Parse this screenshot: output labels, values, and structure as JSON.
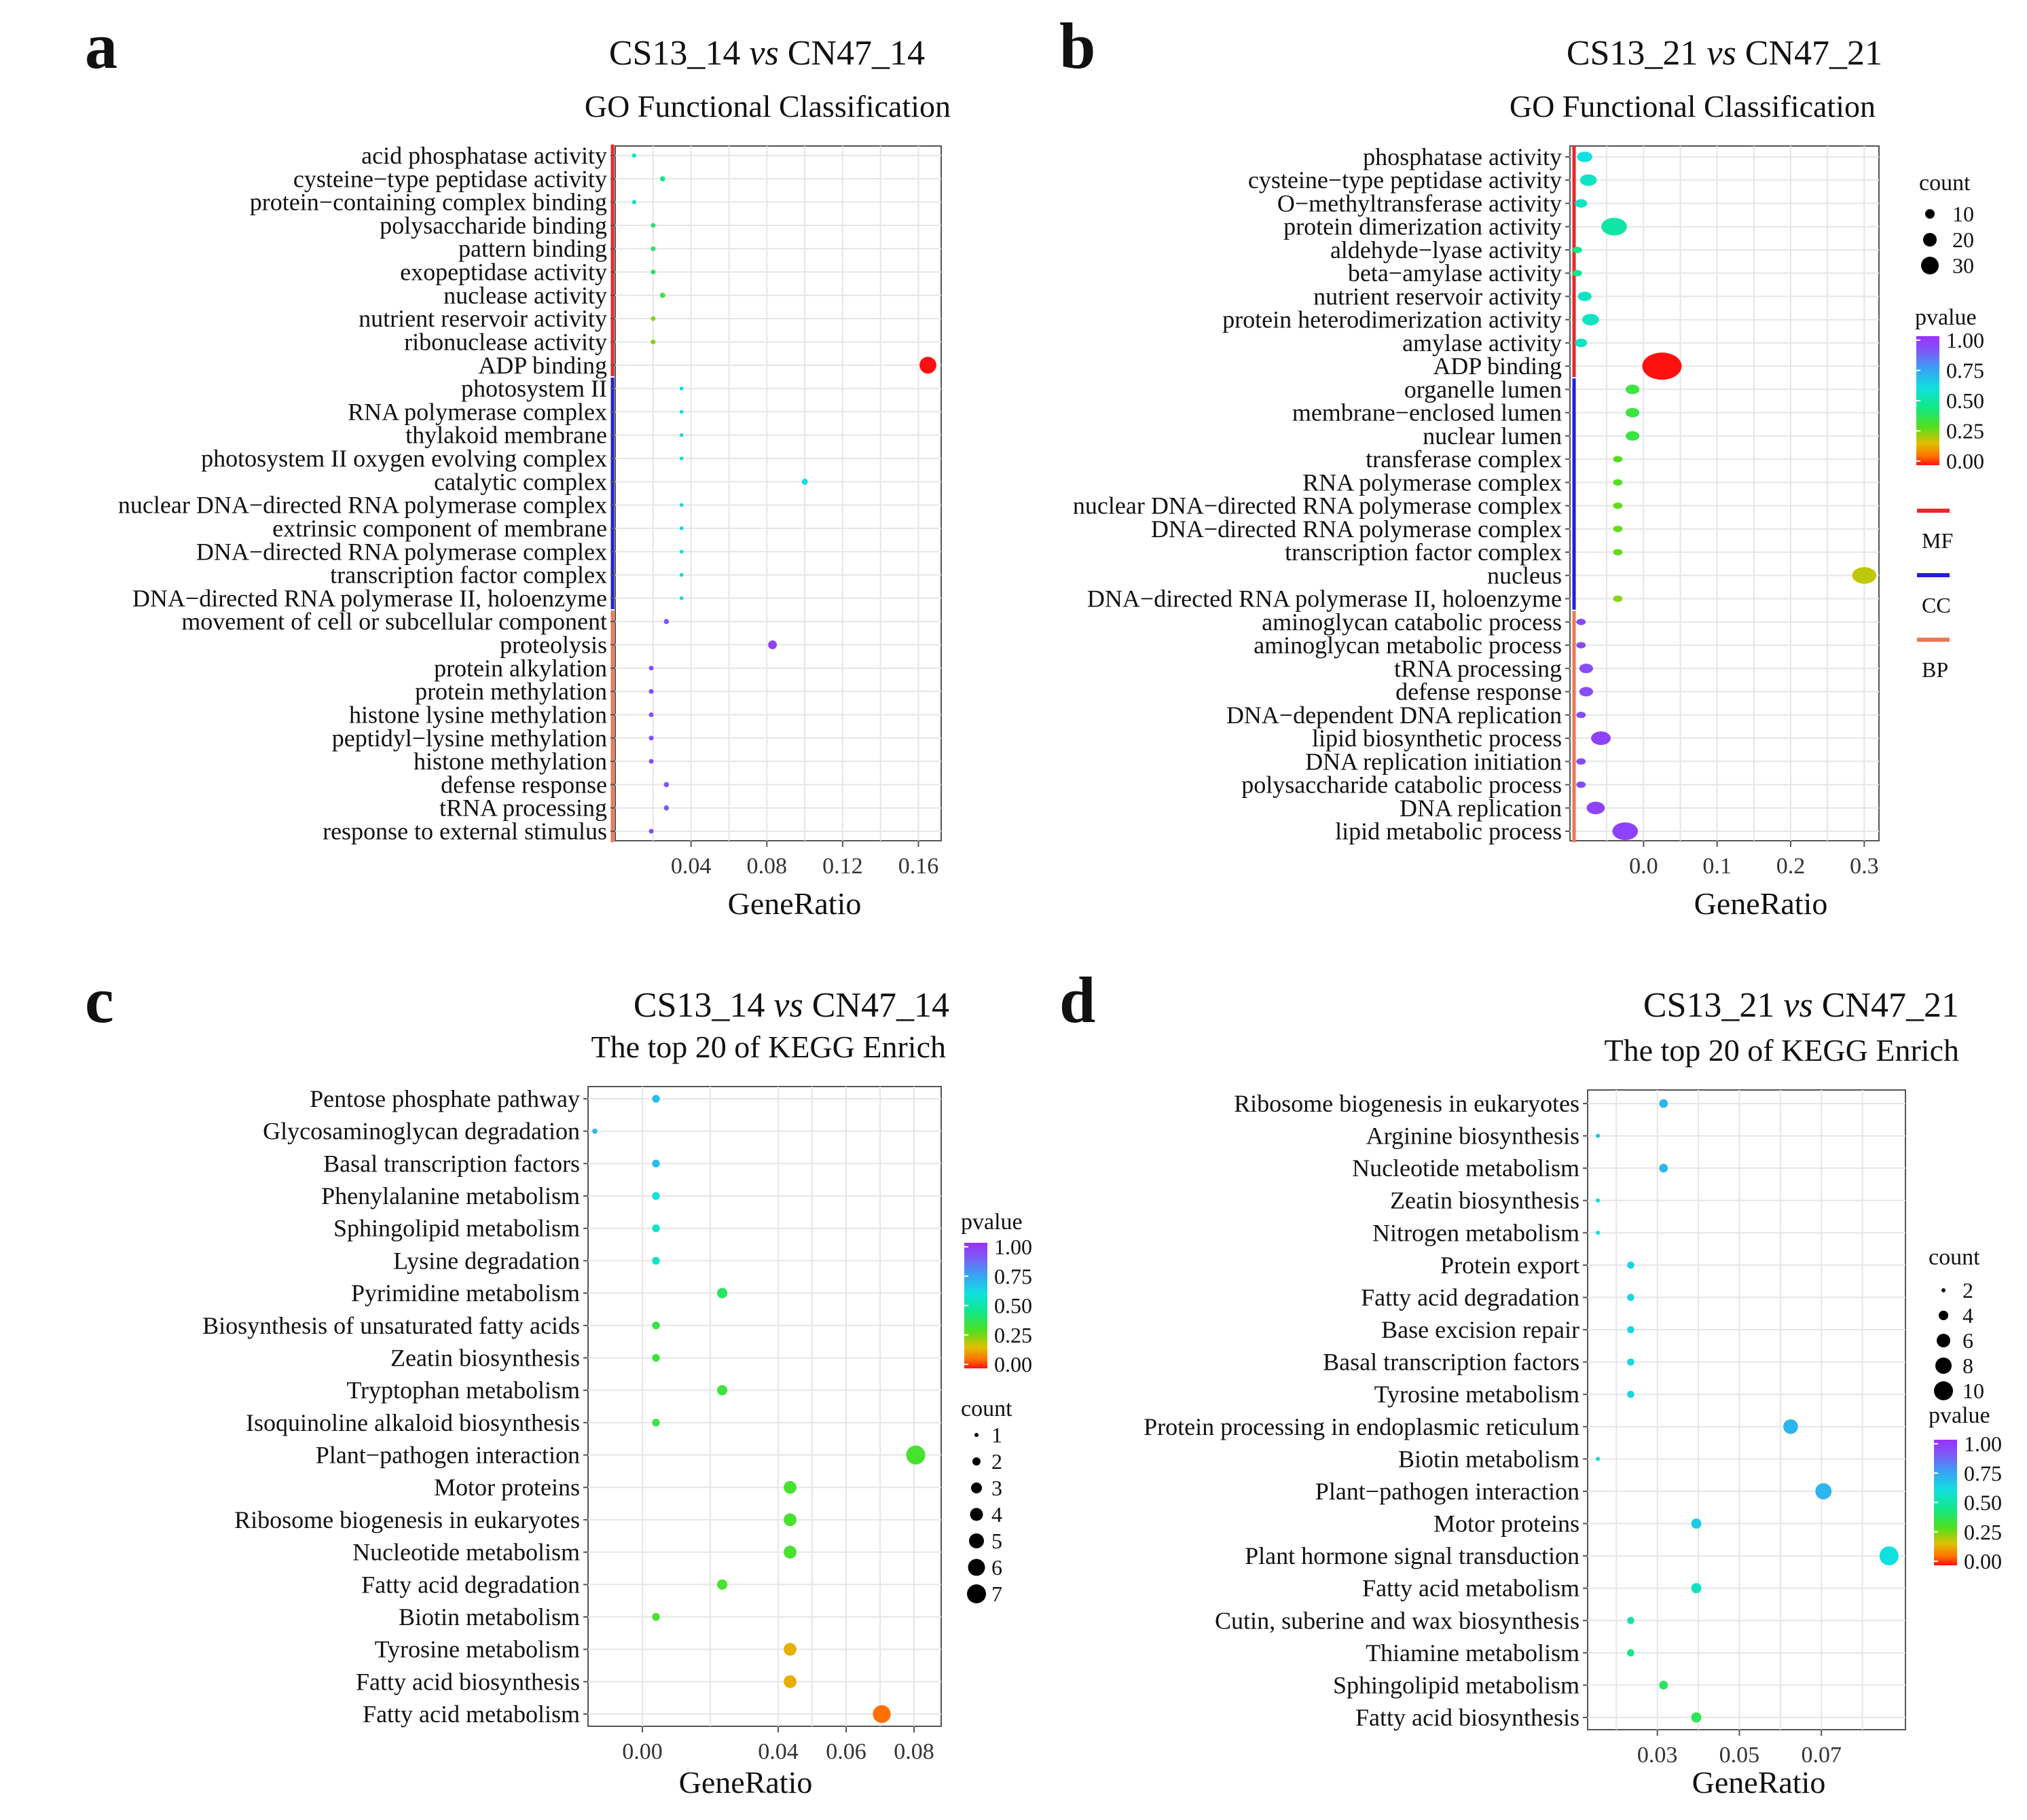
{
  "chart_data": [
    {
      "panel": "a",
      "type": "scatter",
      "title": "CS13_14 vs CN47_14",
      "title_parts": [
        "CS13_14",
        "vs",
        "CN47_14"
      ],
      "subtitle": "GO Functional Classification",
      "xlabel": "GeneRatio",
      "xlim": [
        0.0,
        0.172
      ],
      "xticks": [
        0.04,
        0.08,
        0.12,
        0.16
      ],
      "xtick_labels": [
        "0.04",
        "0.08",
        "0.12",
        "0.16"
      ],
      "categories": [
        "acid phosphatase activity",
        "cysteine−type peptidase activity",
        "protein−containing complex binding",
        "polysaccharide binding",
        "pattern binding",
        "exopeptidase activity",
        "nuclease activity",
        "nutrient reservoir activity",
        "ribonuclease activity",
        "ADP binding",
        "photosystem II",
        "RNA polymerase complex",
        "thylakoid membrane",
        "photosystem II oxygen evolving complex",
        "catalytic complex",
        "nuclear DNA−directed RNA polymerase complex",
        "extrinsic component of membrane",
        "DNA−directed RNA polymerase complex",
        "transcription factor complex",
        "DNA−directed RNA polymerase II, holoenzyme",
        "movement of cell or subcellular component",
        "proteolysis",
        "protein alkylation",
        "protein methylation",
        "histone lysine methylation",
        "peptidyl−lysine methylation",
        "histone methylation",
        "defense response",
        "tRNA processing",
        "response to external stimulus"
      ],
      "gene_ratio": [
        0.01,
        0.025,
        0.01,
        0.02,
        0.02,
        0.02,
        0.025,
        0.02,
        0.02,
        0.165,
        0.035,
        0.035,
        0.035,
        0.035,
        0.1,
        0.035,
        0.035,
        0.035,
        0.035,
        0.035,
        0.027,
        0.083,
        0.019,
        0.019,
        0.019,
        0.019,
        0.019,
        0.027,
        0.027,
        0.019
      ],
      "count": [
        2,
        4,
        2,
        3,
        3,
        3,
        4,
        3,
        3,
        30,
        1,
        1,
        1,
        1,
        6,
        1,
        1,
        1,
        1,
        1,
        4,
        12,
        3,
        3,
        3,
        3,
        3,
        4,
        4,
        3
      ],
      "pvalue": [
        0.55,
        0.45,
        0.55,
        0.4,
        0.4,
        0.4,
        0.35,
        0.25,
        0.25,
        0.0,
        0.62,
        0.62,
        0.62,
        0.62,
        0.6,
        0.62,
        0.62,
        0.62,
        0.62,
        0.62,
        0.9,
        0.95,
        0.93,
        0.93,
        0.93,
        0.93,
        0.93,
        0.9,
        0.9,
        0.93
      ],
      "ontology": [
        "MF",
        "MF",
        "MF",
        "MF",
        "MF",
        "MF",
        "MF",
        "MF",
        "MF",
        "MF",
        "CC",
        "CC",
        "CC",
        "CC",
        "CC",
        "CC",
        "CC",
        "CC",
        "CC",
        "CC",
        "BP",
        "BP",
        "BP",
        "BP",
        "BP",
        "BP",
        "BP",
        "BP",
        "BP",
        "BP"
      ]
    },
    {
      "panel": "b",
      "type": "scatter",
      "title": "CS13_21 vs CN47_21",
      "title_parts": [
        "CS13_21",
        "vs",
        "CN47_21"
      ],
      "subtitle": "GO Functional Classification",
      "xlabel": "GeneRatio",
      "xlim": [
        -0.1,
        0.32
      ],
      "xticks": [
        0.0,
        0.1,
        0.2,
        0.3
      ],
      "xtick_labels": [
        "0.0",
        "0.1",
        "0.2",
        "0.3"
      ],
      "categories": [
        "phosphatase activity",
        "cysteine−type peptidase activity",
        "O−methyltransferase activity",
        "protein dimerization activity",
        "aldehyde−lyase activity",
        "beta−amylase activity",
        "nutrient reservoir activity",
        "protein heterodimerization activity",
        "amylase activity",
        "ADP binding",
        "organelle lumen",
        "membrane−enclosed lumen",
        "nuclear lumen",
        "transferase complex",
        "RNA polymerase complex",
        "nuclear DNA−directed RNA polymerase complex",
        "DNA−directed RNA polymerase complex",
        "transcription factor complex",
        "nucleus",
        "DNA−directed RNA polymerase II, holoenzyme",
        "aminoglycan catabolic process",
        "aminoglycan metabolic process",
        "tRNA processing",
        "defense response",
        "DNA−dependent DNA replication",
        "lipid biosynthetic process",
        "DNA replication initiation",
        "polysaccharide catabolic process",
        "DNA replication",
        "lipid metabolic process"
      ],
      "gene_ratio": [
        -0.08,
        -0.075,
        -0.085,
        -0.04,
        -0.09,
        -0.09,
        -0.08,
        -0.072,
        -0.085,
        0.025,
        -0.015,
        -0.015,
        -0.015,
        -0.035,
        -0.035,
        -0.035,
        -0.035,
        -0.035,
        0.3,
        -0.035,
        -0.085,
        -0.085,
        -0.078,
        -0.078,
        -0.085,
        -0.058,
        -0.085,
        -0.085,
        -0.065,
        -0.025
      ],
      "count": [
        7,
        8,
        5,
        14,
        3,
        3,
        6,
        8,
        5,
        30,
        6,
        6,
        6,
        3,
        3,
        3,
        3,
        3,
        13,
        3,
        3,
        3,
        6,
        6,
        3,
        10,
        3,
        3,
        9,
        14
      ],
      "pvalue": [
        0.6,
        0.55,
        0.55,
        0.5,
        0.45,
        0.45,
        0.55,
        0.55,
        0.55,
        0.0,
        0.35,
        0.35,
        0.35,
        0.3,
        0.3,
        0.28,
        0.28,
        0.28,
        0.2,
        0.25,
        0.93,
        0.93,
        0.92,
        0.92,
        0.93,
        0.95,
        0.93,
        0.93,
        0.95,
        0.95
      ],
      "ontology": [
        "MF",
        "MF",
        "MF",
        "MF",
        "MF",
        "MF",
        "MF",
        "MF",
        "MF",
        "MF",
        "CC",
        "CC",
        "CC",
        "CC",
        "CC",
        "CC",
        "CC",
        "CC",
        "CC",
        "CC",
        "BP",
        "BP",
        "BP",
        "BP",
        "BP",
        "BP",
        "BP",
        "BP",
        "BP",
        "BP"
      ],
      "legend": {
        "count_title": "count",
        "count_values": [
          10,
          20,
          30
        ],
        "count_labels": [
          "10",
          "20",
          "30"
        ],
        "pvalue_title": "pvalue",
        "pvalue_ticks": [
          "1.00",
          "0.75",
          "0.50",
          "0.25",
          "0.00"
        ],
        "ontology_labels": [
          "MF",
          "CC",
          "BP"
        ],
        "ontology_colors": [
          "#e8282b",
          "#1f1fd6",
          "#ee7755"
        ]
      }
    },
    {
      "panel": "c",
      "type": "scatter",
      "title": "CS13_14 vs CN47_14",
      "title_parts": [
        "CS13_14",
        "vs",
        "CN47_14"
      ],
      "subtitle": "The top 20 of KEGG Enrich",
      "xlabel": "GeneRatio",
      "xlim": [
        -0.016,
        0.088
      ],
      "xticks": [
        0.0,
        0.04,
        0.06,
        0.08
      ],
      "xtick_labels": [
        "0.00",
        "0.04",
        "0.06",
        "0.08"
      ],
      "categories": [
        "Pentose phosphate pathway",
        "Glycosaminoglycan degradation",
        "Basal transcription factors",
        "Phenylalanine metabolism",
        "Sphingolipid metabolism",
        "Lysine degradation",
        "Pyrimidine metabolism",
        "Biosynthesis of unsaturated fatty acids",
        "Zeatin biosynthesis",
        "Tryptophan metabolism",
        "Isoquinoline alkaloid biosynthesis",
        "Plant−pathogen interaction",
        "Motor proteins",
        "Ribosome biogenesis in eukaryotes",
        "Nucleotide metabolism",
        "Fatty acid degradation",
        "Biotin metabolism",
        "Tyrosine metabolism",
        "Fatty acid biosynthesis",
        "Fatty acid metabolism"
      ],
      "gene_ratio": [
        0.004,
        -0.014,
        0.004,
        0.004,
        0.004,
        0.004,
        0.0235,
        0.004,
        0.004,
        0.0235,
        0.004,
        0.0805,
        0.0435,
        0.0435,
        0.0435,
        0.0235,
        0.004,
        0.0435,
        0.0435,
        0.0705
      ],
      "count": [
        2,
        1,
        2,
        2,
        2,
        2,
        3,
        2,
        2,
        3,
        2,
        7,
        4,
        4,
        4,
        3,
        2,
        4,
        4,
        6
      ],
      "pvalue": [
        0.68,
        0.7,
        0.68,
        0.6,
        0.55,
        0.55,
        0.4,
        0.35,
        0.35,
        0.35,
        0.35,
        0.32,
        0.32,
        0.32,
        0.32,
        0.32,
        0.32,
        0.15,
        0.15,
        0.07
      ],
      "legend": {
        "pvalue_title": "pvalue",
        "pvalue_ticks": [
          "1.00",
          "0.75",
          "0.50",
          "0.25",
          "0.00"
        ],
        "count_title": "count",
        "count_values": [
          1,
          2,
          3,
          4,
          5,
          6,
          7
        ],
        "count_labels": [
          "1",
          "2",
          "3",
          "4",
          "5",
          "6",
          "7"
        ]
      }
    },
    {
      "panel": "d",
      "type": "scatter",
      "title": "CS13_21 vs CN47_21",
      "title_parts": [
        "CS13_21",
        "vs",
        "CN47_21"
      ],
      "subtitle": "The top 20 of KEGG Enrich",
      "xlabel": "GeneRatio",
      "xlim": [
        0.013,
        0.0905
      ],
      "xticks": [
        0.03,
        0.05,
        0.07
      ],
      "xtick_labels": [
        "0.03",
        "0.05",
        "0.07"
      ],
      "categories": [
        "Ribosome biogenesis in eukaryotes",
        "Arginine biosynthesis",
        "Nucleotide metabolism",
        "Zeatin biosynthesis",
        "Nitrogen metabolism",
        "Protein export",
        "Fatty acid degradation",
        "Base excision repair",
        "Basal transcription factors",
        "Tyrosine metabolism",
        "Protein processing in endoplasmic reticulum",
        "Biotin metabolism",
        "Plant−pathogen interaction",
        "Motor proteins",
        "Plant hormone signal transduction",
        "Fatty acid metabolism",
        "Cutin, suberine and wax biosynthesis",
        "Thiamine metabolism",
        "Sphingolipid metabolism",
        "Fatty acid biosynthesis"
      ],
      "gene_ratio": [
        0.0315,
        0.0155,
        0.0315,
        0.0155,
        0.0155,
        0.0235,
        0.0235,
        0.0235,
        0.0235,
        0.0235,
        0.0625,
        0.0155,
        0.0705,
        0.0395,
        0.0865,
        0.0395,
        0.0235,
        0.0235,
        0.0315,
        0.0395
      ],
      "count": [
        4,
        1,
        4,
        1,
        1,
        3,
        3,
        3,
        3,
        3,
        8,
        1,
        9,
        5,
        11,
        5,
        3,
        3,
        4,
        5
      ],
      "pvalue": [
        0.7,
        0.68,
        0.7,
        0.6,
        0.6,
        0.62,
        0.62,
        0.62,
        0.62,
        0.62,
        0.7,
        0.62,
        0.7,
        0.65,
        0.6,
        0.55,
        0.5,
        0.45,
        0.4,
        0.38
      ],
      "legend": {
        "count_title": "count",
        "count_values": [
          2,
          4,
          6,
          8,
          10
        ],
        "count_labels": [
          "2",
          "4",
          "6",
          "8",
          "10"
        ],
        "pvalue_title": "pvalue",
        "pvalue_ticks": [
          "1.00",
          "0.75",
          "0.50",
          "0.25",
          "0.00"
        ]
      }
    }
  ],
  "panel_letters": [
    "a",
    "b",
    "c",
    "d"
  ]
}
